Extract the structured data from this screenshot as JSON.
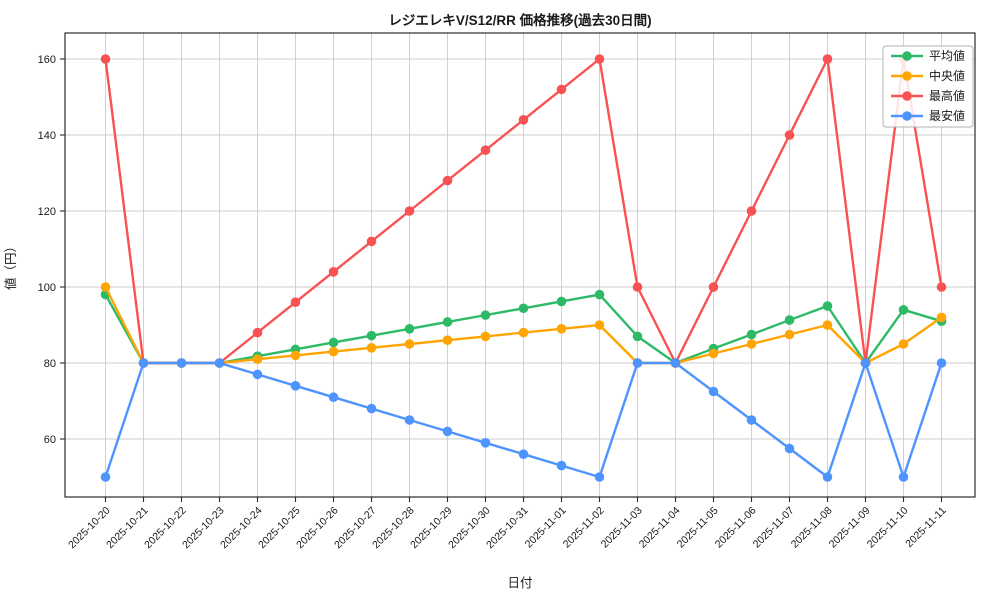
{
  "chart_data": {
    "type": "line",
    "title": "レジエレキV/S12/RR 価格推移(過去30日間)",
    "xlabel": "日付",
    "ylabel": "値（円）",
    "grid": true,
    "legend_position": "top-right",
    "ylim": [
      44,
      167
    ],
    "yticks": [
      60,
      80,
      100,
      120,
      140,
      160
    ],
    "categories": [
      "2025-10-20",
      "2025-10-21",
      "2025-10-22",
      "2025-10-23",
      "2025-10-24",
      "2025-10-25",
      "2025-10-26",
      "2025-10-27",
      "2025-10-28",
      "2025-10-29",
      "2025-10-30",
      "2025-10-31",
      "2025-11-01",
      "2025-11-02",
      "2025-11-03",
      "2025-11-04",
      "2025-11-05",
      "2025-11-06",
      "2025-11-07",
      "2025-11-08",
      "2025-11-09",
      "2025-11-10",
      "2025-11-11"
    ],
    "series": [
      {
        "name": "平均値",
        "color": "#2dba66",
        "values": [
          98,
          80,
          80,
          80,
          81.8,
          83.6,
          85.4,
          87.2,
          89,
          90.8,
          92.6,
          94.4,
          96.2,
          98,
          87,
          80,
          83.8,
          87.5,
          91.3,
          95,
          80,
          94,
          91
        ]
      },
      {
        "name": "中央値",
        "color": "#ffa502",
        "values": [
          100,
          80,
          80,
          80,
          81,
          82,
          83,
          84,
          85,
          86,
          87,
          88,
          89,
          90,
          80,
          80,
          82.5,
          85,
          87.5,
          90,
          80,
          85,
          92
        ]
      },
      {
        "name": "最高値",
        "color": "#fa5252",
        "values": [
          160,
          80,
          80,
          80,
          88,
          96,
          104,
          112,
          120,
          128,
          136,
          144,
          152,
          160,
          100,
          80,
          100,
          120,
          140,
          160,
          80,
          160,
          100
        ]
      },
      {
        "name": "最安値",
        "color": "#4d94ff",
        "values": [
          50,
          80,
          80,
          80,
          77,
          74,
          71,
          68,
          65,
          62,
          59,
          56,
          53,
          50,
          80,
          80,
          72.5,
          65,
          57.5,
          50,
          80,
          50,
          80
        ]
      }
    ],
    "style": {
      "grid_color": "#cccccc",
      "spine_color": "#2b2b2b",
      "legend_border": "#b3b3b3",
      "legend_bg": "#ffffff",
      "text_color": "#1a1a1a"
    }
  }
}
